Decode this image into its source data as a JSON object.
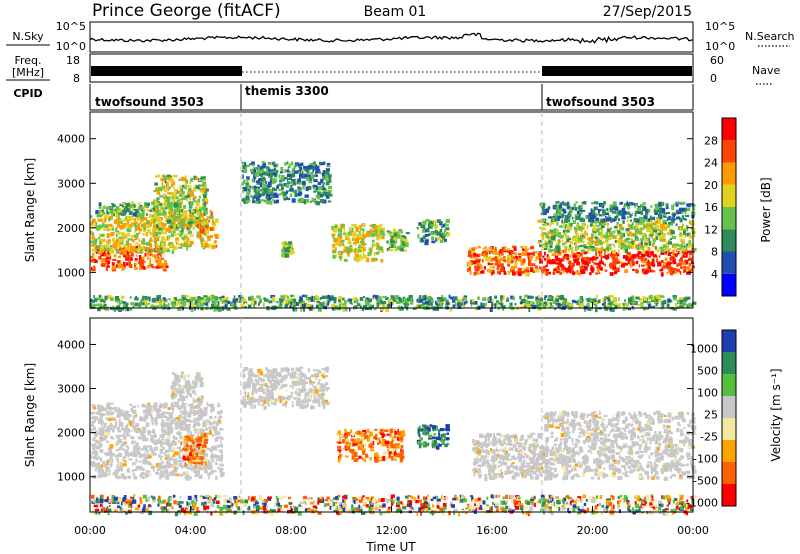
{
  "header": {
    "site": "Prince George (fitACF)",
    "beam": "Beam 01",
    "date": "27/Sep/2015"
  },
  "noise_panel": {
    "left_label": "N.Sky",
    "right_label": "N.Search",
    "ticks_left": [
      "10^5",
      "10^0"
    ],
    "ticks_right": [
      "10^5",
      "10^0"
    ]
  },
  "freq_panel": {
    "left_label_1": "Freq.",
    "left_label_2": "[MHz]",
    "right_label": "Nave",
    "ticks_left": [
      "18",
      "8"
    ],
    "ticks_right": [
      "60",
      "0"
    ]
  },
  "cpid": {
    "label": "CPID",
    "segments": [
      {
        "name": "twofsound 3503",
        "start": 0,
        "end": 6
      },
      {
        "name": "themis 3300",
        "start": 6,
        "end": 18
      },
      {
        "name": "twofsound 3503",
        "start": 18,
        "end": 24
      }
    ]
  },
  "chart_data": [
    {
      "type": "heatmap",
      "panel": "power",
      "ylabel": "Slant Range [km]",
      "ylim": [
        200,
        4600
      ],
      "yticks": [
        1000,
        2000,
        3000,
        4000
      ],
      "xlim": [
        0,
        24
      ],
      "colorbar": {
        "label": "Power [dB]",
        "range": [
          0,
          32
        ],
        "ticks": [
          "4",
          "8",
          "12",
          "16",
          "20",
          "24",
          "28"
        ],
        "colors": [
          "#0000ff",
          "#1f4fb0",
          "#2e8b57",
          "#66c24a",
          "#e0d21e",
          "#ff9a00",
          "#ff4400",
          "#ff0000"
        ]
      },
      "scatter_bands": [
        {
          "t0": 0.0,
          "t1": 3.0,
          "r0": 1100,
          "r1": 1600,
          "level": 26
        },
        {
          "t0": 0.0,
          "t1": 4.0,
          "r0": 1500,
          "r1": 2300,
          "level": 18
        },
        {
          "t0": 0.2,
          "t1": 3.6,
          "r0": 2300,
          "r1": 2600,
          "level": 13
        },
        {
          "t0": 2.5,
          "t1": 4.6,
          "r0": 2000,
          "r1": 3200,
          "level": 16
        },
        {
          "t0": 4.2,
          "t1": 5.0,
          "r0": 1600,
          "r1": 2400,
          "level": 20
        },
        {
          "t0": 6.0,
          "t1": 9.5,
          "r0": 2600,
          "r1": 3500,
          "level": 10
        },
        {
          "t0": 7.6,
          "t1": 8.0,
          "r0": 1400,
          "r1": 1700,
          "level": 14
        },
        {
          "t0": 9.6,
          "t1": 11.6,
          "r0": 1300,
          "r1": 2100,
          "level": 18
        },
        {
          "t0": 11.8,
          "t1": 12.6,
          "r0": 1500,
          "r1": 2000,
          "level": 14
        },
        {
          "t0": 13.0,
          "t1": 14.2,
          "r0": 1700,
          "r1": 2200,
          "level": 12
        },
        {
          "t0": 15.0,
          "t1": 17.8,
          "r0": 1000,
          "r1": 1600,
          "level": 24
        },
        {
          "t0": 17.8,
          "t1": 24.0,
          "r0": 1000,
          "r1": 1500,
          "level": 28
        },
        {
          "t0": 17.8,
          "t1": 24.0,
          "r0": 1500,
          "r1": 2200,
          "level": 16
        },
        {
          "t0": 17.8,
          "t1": 24.0,
          "r0": 2200,
          "r1": 2600,
          "level": 10
        },
        {
          "t0": 0.0,
          "t1": 24.0,
          "r0": 200,
          "r1": 500,
          "level": 12
        }
      ]
    },
    {
      "type": "heatmap",
      "panel": "velocity",
      "ylabel": "Slant Range [km]",
      "xlabel": "Time UT",
      "ylim": [
        200,
        4600
      ],
      "yticks": [
        1000,
        2000,
        3000,
        4000
      ],
      "xlim": [
        0,
        24
      ],
      "xticks": [
        "00:00",
        "04:00",
        "08:00",
        "12:00",
        "16:00",
        "20:00",
        "00:00"
      ],
      "colorbar": {
        "label": "Velocity [m s⁻¹]",
        "ticks": [
          "1000",
          "500",
          "100",
          "25",
          "-25",
          "-100",
          "-500",
          "-1000"
        ],
        "colors": [
          "#1f3fb0",
          "#2e8b57",
          "#55c040",
          "#c8c8c8",
          "#f2e8a0",
          "#ffa500",
          "#ff6000",
          "#ff0000"
        ]
      },
      "scatter_bands": [
        {
          "t0": 0.0,
          "t1": 5.2,
          "r0": 1000,
          "r1": 2700,
          "class": "ground"
        },
        {
          "t0": 3.2,
          "t1": 4.4,
          "r0": 2600,
          "r1": 3400,
          "class": "ground"
        },
        {
          "t0": 3.6,
          "t1": 4.6,
          "r0": 1300,
          "r1": 2000,
          "class": "neg_fast"
        },
        {
          "t0": 6.0,
          "t1": 9.4,
          "r0": 2600,
          "r1": 3500,
          "class": "ground"
        },
        {
          "t0": 9.8,
          "t1": 12.4,
          "r0": 1400,
          "r1": 2100,
          "class": "neg_fast"
        },
        {
          "t0": 13.0,
          "t1": 14.2,
          "r0": 1700,
          "r1": 2200,
          "class": "pos"
        },
        {
          "t0": 15.2,
          "t1": 18.0,
          "r0": 1000,
          "r1": 2000,
          "class": "ground"
        },
        {
          "t0": 18.0,
          "t1": 24.0,
          "r0": 1000,
          "r1": 2500,
          "class": "ground"
        },
        {
          "t0": 0.0,
          "t1": 24.0,
          "r0": 200,
          "r1": 600,
          "class": "mixed"
        }
      ]
    }
  ]
}
